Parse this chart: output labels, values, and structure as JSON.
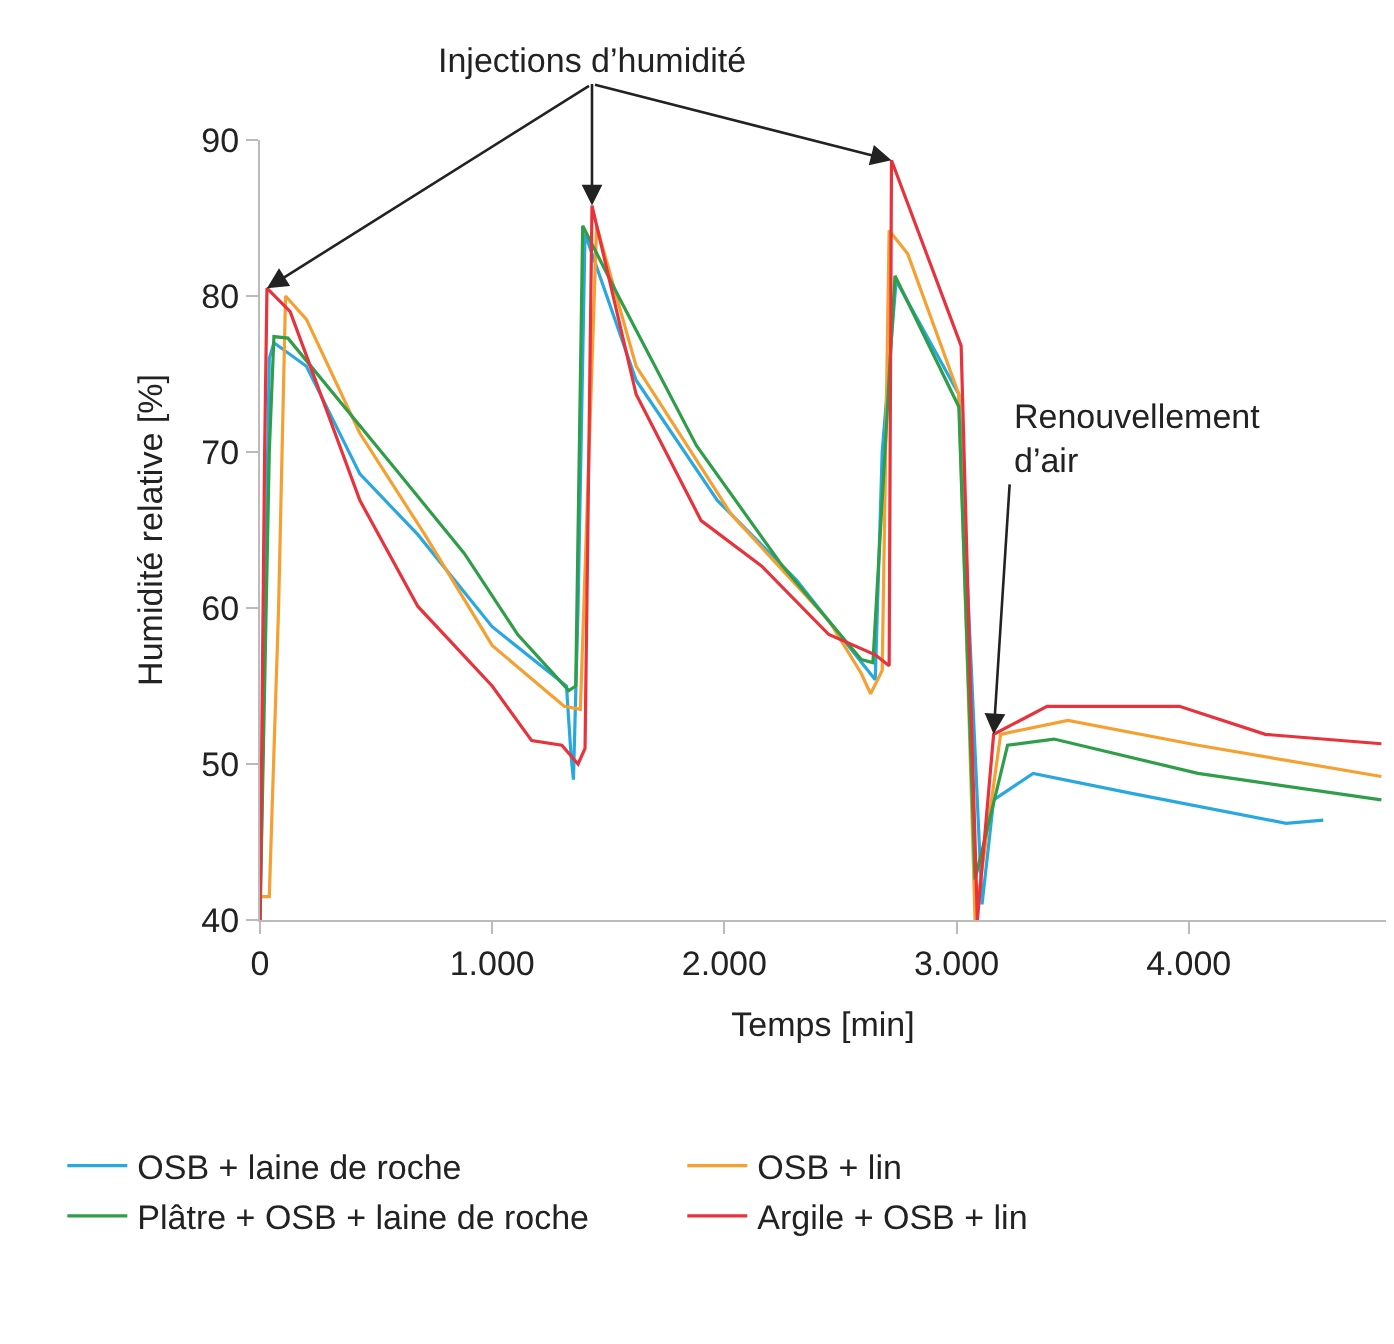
{
  "chart_data": {
    "type": "line",
    "xlabel": "Temps [min]",
    "ylabel": "Humidité relative [%]",
    "xlim": [
      0,
      4850
    ],
    "ylim": [
      40,
      90
    ],
    "xticks": [
      0,
      {
        "value": 1000,
        "label": "1.000"
      },
      {
        "value": 2000,
        "label": "2.000"
      },
      {
        "value": 3000,
        "label": "3.000"
      },
      {
        "value": 4000,
        "label": "4.000"
      }
    ],
    "yticks": [
      40,
      50,
      60,
      70,
      80,
      90
    ],
    "grid": false,
    "legend": "bottom",
    "marker": "none",
    "line_style": "solid",
    "annotations": [
      {
        "text": "Injections d’humidité",
        "x": 1430,
        "y": 85.8
      },
      {
        "text": "Renouvellement d’air",
        "x": 3160,
        "y": 51.9
      }
    ],
    "series": [
      {
        "name": "OSB + laine de roche",
        "color": "#29a8e0",
        "x": [
          0,
          40,
          60,
          200,
          430,
          680,
          1000,
          1320,
          1340,
          1350,
          1370,
          1400,
          1620,
          1970,
          2310,
          2650,
          2680,
          2740,
          3010,
          3110,
          3160,
          3330,
          3760,
          4420,
          4580
        ],
        "values": [
          40,
          76,
          77,
          75.5,
          68.6,
          64.7,
          58.8,
          55,
          50.5,
          49,
          60,
          84,
          74.6,
          66.9,
          61.8,
          55.4,
          70,
          81,
          73.7,
          41,
          47.7,
          49.4,
          48.1,
          46.2,
          46.4
        ]
      },
      {
        "name": "OSB + lin",
        "color": "#f5a031",
        "x": [
          0,
          40,
          80,
          110,
          200,
          430,
          710,
          1000,
          1310,
          1380,
          1450,
          1620,
          2030,
          2450,
          2590,
          2630,
          2680,
          2710,
          2790,
          3010,
          3050,
          3080,
          3190,
          3480,
          4040,
          4830
        ],
        "values": [
          41.5,
          41.5,
          60,
          80,
          78.5,
          71.2,
          64.7,
          57.6,
          53.7,
          53.5,
          84.5,
          75.5,
          66,
          59.2,
          55.8,
          54.5,
          56,
          84.2,
          82.7,
          73.7,
          55,
          40,
          51.9,
          52.8,
          51.2,
          49.2
        ]
      },
      {
        "name": "Plâtre + OSB + laine de roche",
        "color": "#2e9e48",
        "x": [
          0,
          40,
          60,
          120,
          600,
          880,
          1110,
          1330,
          1360,
          1390,
          1540,
          1880,
          2250,
          2590,
          2640,
          2735,
          3010,
          3040,
          3080,
          3220,
          3420,
          4040,
          4830
        ],
        "values": [
          40,
          70,
          77.4,
          77.3,
          68.6,
          63.5,
          58.3,
          54.7,
          55,
          84.5,
          80.1,
          70.4,
          62.7,
          56.7,
          56.5,
          81.3,
          72.9,
          60,
          42.6,
          51.2,
          51.6,
          49.4,
          47.7
        ]
      },
      {
        "name": "Argile + OSB + lin",
        "color": "#e8323c",
        "x": [
          0,
          20,
          30,
          130,
          430,
          680,
          1000,
          1170,
          1300,
          1370,
          1400,
          1430,
          1620,
          1900,
          2160,
          2450,
          2650,
          2710,
          2720,
          3020,
          3060,
          3090,
          3160,
          3390,
          3960,
          4330,
          4830
        ],
        "values": [
          40,
          70,
          80.5,
          79,
          66.9,
          60.1,
          55,
          51.5,
          51.2,
          50,
          51,
          85.8,
          73.7,
          65.6,
          62.7,
          58.3,
          57,
          56.3,
          88.7,
          76.8,
          55,
          40,
          51.9,
          53.7,
          53.7,
          51.9,
          51.3
        ]
      }
    ]
  }
}
